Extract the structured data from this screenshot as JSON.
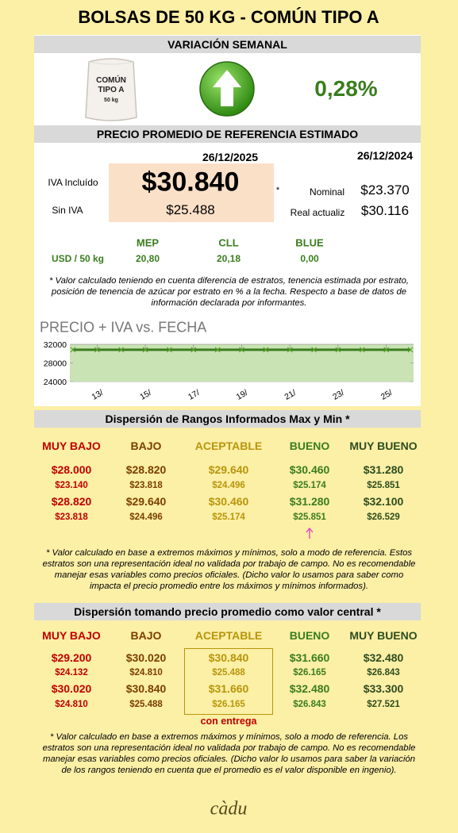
{
  "title": "BOLSAS DE 50 KG - COMÚN TIPO A",
  "weekly": {
    "header": "VARIACIÓN SEMANAL",
    "bag_label": [
      "COMÚN",
      "TIPO A",
      "50 kg"
    ],
    "change": "0,28%"
  },
  "reference": {
    "header": "PRECIO PROMEDIO DE REFERENCIA ESTIMADO",
    "date_current": "26/12/2025",
    "date_previous": "26/12/2024",
    "iva_label": "IVA Incluído",
    "iva_price": "$30.840",
    "no_iva_label": "Sin IVA",
    "no_iva_price": "$25.488",
    "asterisk": "*",
    "nominal_label": "Nominal",
    "nominal_price": "$23.370",
    "real_label": "Real actualiz",
    "real_price": "$30.116",
    "usd": {
      "headers": [
        "MEP",
        "CLL",
        "BLUE"
      ],
      "row_label": "USD / 50 kg",
      "values": [
        "20,80",
        "20,18",
        "0,00"
      ]
    },
    "note": "* Valor calculado teniendo en cuenta diferencia de estratos, tenencia estimada por estrato, posición de tenencia de azúcar por estrato en % a la fecha. Respecto a base de datos de información declarada por informantes."
  },
  "chart_data": {
    "type": "area",
    "title": "PRECIO + IVA vs. FECHA",
    "categories": [
      null,
      "13/",
      null,
      "15/",
      null,
      "17/",
      null,
      "19/",
      null,
      "21/",
      null,
      "23/",
      null,
      "25/",
      null
    ],
    "values": [
      30840,
      30840,
      30840,
      30840,
      30840,
      30840,
      30840,
      30840,
      30840,
      30840,
      30840,
      30840,
      30840,
      30840,
      30840
    ],
    "color": "#3a7d1e",
    "fill": "#c9e3b5",
    "ylim": [
      24000,
      32000
    ],
    "yticks": [
      24000,
      28000,
      32000
    ],
    "grid": true
  },
  "ranges": {
    "header": "Dispersión de Rangos Informados Max y Min *",
    "columns": [
      "MUY BAJO",
      "BAJO",
      "ACEPTABLE",
      "BUENO",
      "MUY BUENO"
    ],
    "rows": [
      [
        "$28.000",
        "$28.820",
        "$29.640",
        "$30.460",
        "$31.280"
      ],
      [
        "$23.140",
        "$23.818",
        "$24.496",
        "$25.174",
        "$25.851"
      ],
      [
        "$28.820",
        "$29.640",
        "$30.460",
        "$31.280",
        "$32.100"
      ],
      [
        "$23.818",
        "$24.496",
        "$25.174",
        "$25.851",
        "$26.529"
      ]
    ],
    "note": "* Valor calculado en base a extremos máximos y mínimos, solo a modo de referencia. Estos estratos son una representación ideal no validada por trabajo de campo. No es recomendable manejar esas variables como precios oficiales. (Dicho valor lo usamos para saber como impacta el precio promedio entre los máximos y mínimos informados)."
  },
  "central": {
    "header": "Dispersión tomando precio promedio como valor central *",
    "columns": [
      "MUY BAJO",
      "BAJO",
      "ACEPTABLE",
      "BUENO",
      "MUY BUENO"
    ],
    "rows": [
      [
        "$29.200",
        "$30.020",
        "$30.840",
        "$31.660",
        "$32.480"
      ],
      [
        "$24.132",
        "$24.810",
        "$25.488",
        "$26.165",
        "$26.843"
      ],
      [
        "$30.020",
        "$30.840",
        "$31.660",
        "$32.480",
        "$33.300"
      ],
      [
        "$24.810",
        "$25.488",
        "$26.165",
        "$26.843",
        "$27.521"
      ]
    ],
    "highlight_label": "con entrega",
    "note": "* Valor calculado en base a extremos máximos y mínimos, solo a modo de referencia. Los estratos son una representación ideal no validada por trabajo de campo. No es recomendable manejar esas variables como precios oficiales. (Dicho valor lo usamos para saber la variación de los rangos teniendo en cuenta que el promedio es el valor disponible en ingenio)."
  },
  "footer": {
    "logo": "càdu"
  }
}
